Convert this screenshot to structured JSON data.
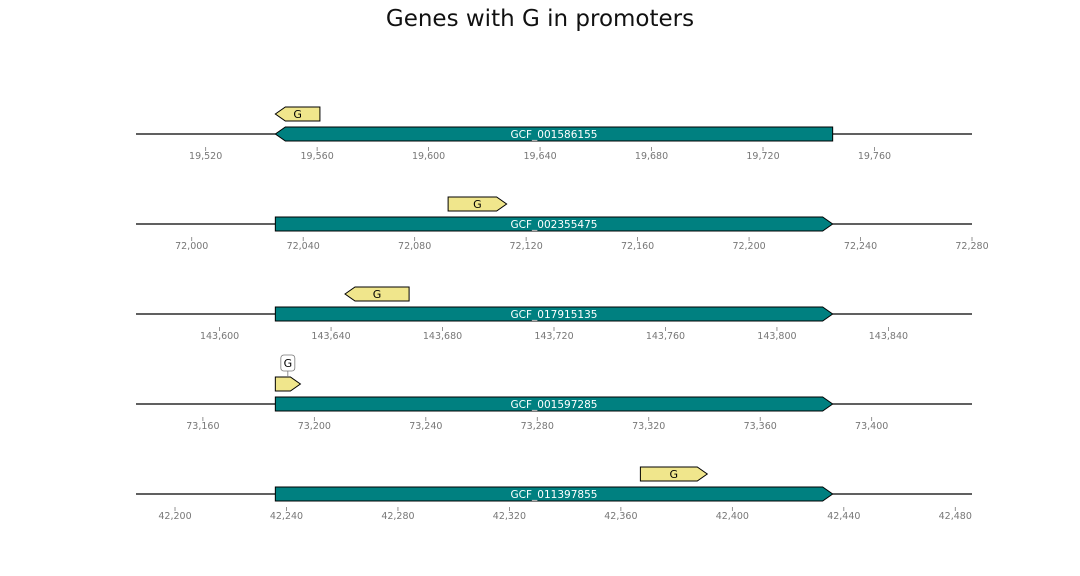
{
  "title": "Genes with G in promoters",
  "colors": {
    "gene_fill": "#008080",
    "gene_label": "#ffffff",
    "motif_fill": "#f0e68c",
    "outline": "#000000",
    "axis_line": "#000000",
    "tick": "#777777"
  },
  "tracks": [
    {
      "gene": {
        "label": "GCF_001586155",
        "start": 19545,
        "end": 19745,
        "strand": "-"
      },
      "motif": {
        "label": "G",
        "start": 19545,
        "end": 19561,
        "strand": "-"
      },
      "ticks": [
        "19,520",
        "19,560",
        "19,600",
        "19,640",
        "19,680",
        "19,720",
        "19,760"
      ],
      "tick_values": [
        19520,
        19560,
        19600,
        19640,
        19680,
        19720,
        19760
      ],
      "range": [
        19495,
        19795
      ]
    },
    {
      "gene": {
        "label": "GCF_002355475",
        "start": 72030,
        "end": 72230,
        "strand": "+"
      },
      "motif": {
        "label": "G",
        "start": 72092,
        "end": 72113,
        "strand": "+"
      },
      "ticks": [
        "72,000",
        "72,040",
        "72,080",
        "72,120",
        "72,160",
        "72,200",
        "72,240",
        "72,280"
      ],
      "tick_values": [
        72000,
        72040,
        72080,
        72120,
        72160,
        72200,
        72240,
        72280
      ],
      "range": [
        71980,
        72280
      ]
    },
    {
      "gene": {
        "label": "GCF_017915135",
        "start": 143620,
        "end": 143820,
        "strand": "+"
      },
      "motif": {
        "label": "G",
        "start": 143645,
        "end": 143668,
        "strand": "-"
      },
      "ticks": [
        "143,600",
        "143,640",
        "143,680",
        "143,720",
        "143,760",
        "143,800",
        "143,840"
      ],
      "tick_values": [
        143600,
        143640,
        143680,
        143720,
        143760,
        143800,
        143840
      ],
      "range": [
        143570,
        143870
      ]
    },
    {
      "gene": {
        "label": "GCF_001597285",
        "start": 73186,
        "end": 73386,
        "strand": "+"
      },
      "motif": {
        "label": "G",
        "start": 73186,
        "end": 73195,
        "strand": "+",
        "label_callout": true
      },
      "ticks": [
        "73,160",
        "73,200",
        "73,240",
        "73,280",
        "73,320",
        "73,360",
        "73,400"
      ],
      "tick_values": [
        73160,
        73200,
        73240,
        73280,
        73320,
        73360,
        73400
      ],
      "range": [
        73136,
        73436
      ]
    },
    {
      "gene": {
        "label": "GCF_011397855",
        "start": 42236,
        "end": 42436,
        "strand": "+"
      },
      "motif": {
        "label": "G",
        "start": 42367,
        "end": 42391,
        "strand": "+"
      },
      "ticks": [
        "42,200",
        "42,240",
        "42,280",
        "42,320",
        "42,360",
        "42,400",
        "42,440",
        "42,480"
      ],
      "tick_values": [
        42200,
        42240,
        42280,
        42320,
        42360,
        42400,
        42440,
        42480
      ],
      "range": [
        42186,
        42486
      ]
    }
  ]
}
